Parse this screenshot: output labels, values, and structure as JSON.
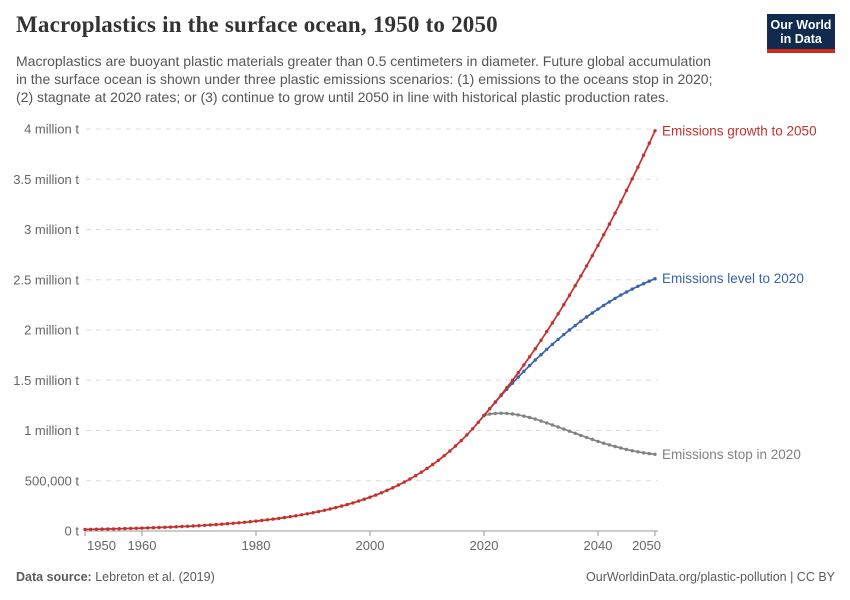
{
  "header": {
    "title": "Macroplastics in the surface ocean, 1950 to 2050",
    "subtitle_lines": [
      "Macroplastics are buoyant plastic materials greater than 0.5 centimeters in diameter. Future global accumulation",
      "in the surface ocean is shown under three plastic emissions scenarios: (1) emissions to the oceans stop in 2020;",
      "(2) stagnate at 2020 rates; or (3) continue to grow until 2050 in line with historical plastic production rates."
    ],
    "logo": {
      "line1": "Our World",
      "line2": "in Data",
      "bg_color": "#112B4E",
      "bar_color": "#CE2A1D"
    }
  },
  "footer": {
    "source_label": "Data source:",
    "source_value": " Lebreton et al. (2019)",
    "credit": "OurWorldinData.org/plastic-pollution | CC BY"
  },
  "chart_data": {
    "type": "line",
    "title": "Macroplastics in the surface ocean, 1950 to 2050",
    "xlabel": "",
    "ylabel": "",
    "unit": "tonnes",
    "xlim": [
      1950,
      2050
    ],
    "ylim": [
      0,
      4000000
    ],
    "grid": "horizontal-dashed",
    "legend_position": "end-of-line-labels",
    "axis_color": "#999999",
    "grid_color": "#dddddd",
    "tick_label_color": "#666666",
    "yticks": [
      {
        "value": 4000000,
        "label": "4 million t"
      },
      {
        "value": 3500000,
        "label": "3.5 million t"
      },
      {
        "value": 3000000,
        "label": "3 million t"
      },
      {
        "value": 2500000,
        "label": "2.5 million t"
      },
      {
        "value": 2000000,
        "label": "2 million t"
      },
      {
        "value": 1500000,
        "label": "1.5 million t"
      },
      {
        "value": 1000000,
        "label": "1 million t"
      },
      {
        "value": 500000,
        "label": "500,000 t"
      },
      {
        "value": 0,
        "label": "0 t"
      }
    ],
    "xticks": [
      {
        "value": 1950,
        "label": "1950"
      },
      {
        "value": 1960,
        "label": "1960"
      },
      {
        "value": 1980,
        "label": "1980"
      },
      {
        "value": 2000,
        "label": "2000"
      },
      {
        "value": 2020,
        "label": "2020"
      },
      {
        "value": 2040,
        "label": "2040"
      },
      {
        "value": 2050,
        "label": "2050"
      }
    ],
    "series": [
      {
        "name": "Emissions stop in 2020",
        "color": "#828282",
        "start_year": 2020,
        "values": [
          1150000,
          1163000,
          1170000,
          1172000,
          1170000,
          1164000,
          1155000,
          1143000,
          1129000,
          1113000,
          1095000,
          1076000,
          1056000,
          1035000,
          1014000,
          993000,
          972000,
          951000,
          931000,
          911000,
          892000,
          874000,
          857000,
          841000,
          826000,
          812000,
          799000,
          788000,
          778000,
          770000,
          763000
        ]
      },
      {
        "name": "Emissions level to 2020",
        "color": "#3764AC",
        "start_year": 2020,
        "values": [
          1150000,
          1217000,
          1283000,
          1347000,
          1410000,
          1471000,
          1531000,
          1589000,
          1646000,
          1701000,
          1754000,
          1807000,
          1857000,
          1906000,
          1954000,
          2000000,
          2044000,
          2088000,
          2129000,
          2169000,
          2208000,
          2245000,
          2280000,
          2314000,
          2347000,
          2378000,
          2407000,
          2435000,
          2461000,
          2486000,
          2510000
        ]
      },
      {
        "name": "Emissions growth to 2050",
        "color": "#C5302C",
        "start_year": 1950,
        "values": [
          15600,
          16600,
          17600,
          18800,
          19900,
          21200,
          22500,
          24000,
          25500,
          27100,
          28800,
          30600,
          32600,
          34600,
          36800,
          39200,
          41600,
          44300,
          47100,
          50100,
          53200,
          56600,
          60200,
          64000,
          68100,
          72400,
          77000,
          81800,
          87000,
          92500,
          98400,
          104600,
          111300,
          118300,
          125800,
          133800,
          142300,
          151300,
          160900,
          171100,
          181900,
          193500,
          205700,
          218800,
          232600,
          247400,
          263100,
          279700,
          297500,
          316300,
          336400,
          357700,
          380400,
          404500,
          430100,
          457400,
          486400,
          517200,
          550000,
          584900,
          622000,
          661400,
          703300,
          747900,
          795300,
          845700,
          899400,
          956400,
          1017000,
          1081500,
          1150000,
          1216000,
          1284000,
          1354000,
          1426000,
          1500000,
          1575000,
          1653000,
          1733000,
          1814000,
          1898000,
          1984000,
          2071000,
          2161000,
          2252000,
          2346000,
          2441000,
          2538000,
          2638000,
          2739000,
          2842000,
          2947000,
          3054000,
          3163000,
          3274000,
          3388000,
          3503000,
          3620000,
          3739000,
          3859000,
          3982000
        ]
      }
    ]
  }
}
